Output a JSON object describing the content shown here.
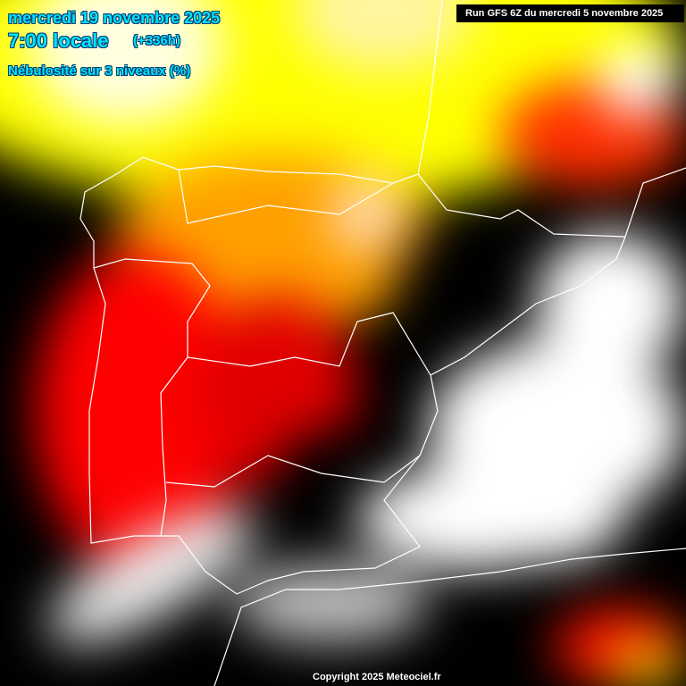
{
  "header": {
    "date": "mercredi 19 novembre 2025",
    "time": "7:00 locale",
    "lead": "(+336h)",
    "parameter": "Nébulosité sur 3 niveaux (%)"
  },
  "run_label": "Run GFS 6Z du mercredi 5 novembre 2025",
  "copyright": "Copyright 2025 Meteociel.fr",
  "colors": {
    "title": "#00e5ff",
    "high_cloud": "#ffff00",
    "mid": "#ff8c00",
    "low": "#ff0000",
    "clear": "#000000",
    "full": "#ffffff",
    "borders": "#ffffff"
  }
}
